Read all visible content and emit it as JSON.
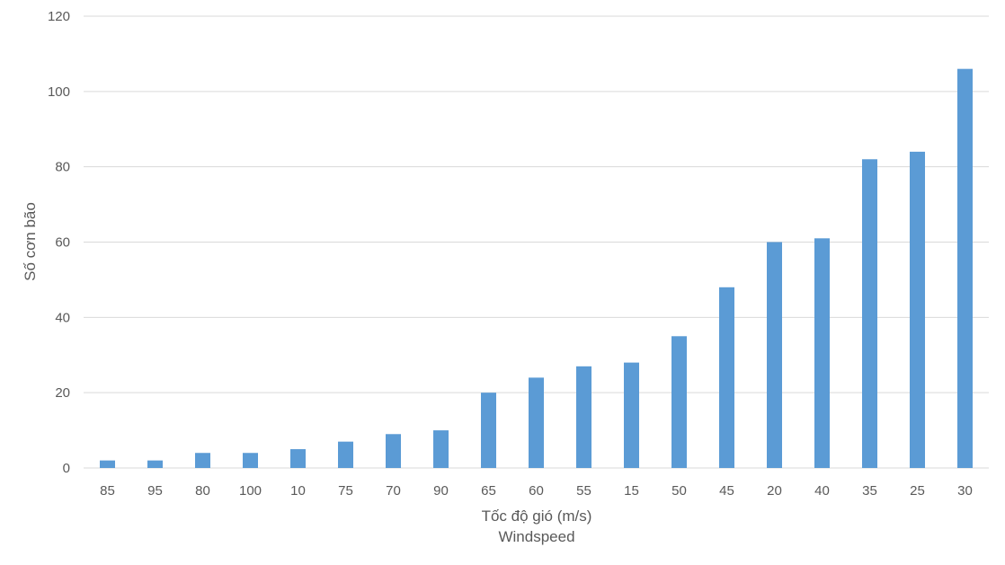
{
  "chart_data": {
    "type": "bar",
    "categories": [
      "85",
      "95",
      "80",
      "100",
      "10",
      "75",
      "70",
      "90",
      "65",
      "60",
      "55",
      "15",
      "50",
      "45",
      "20",
      "40",
      "35",
      "25",
      "30"
    ],
    "series": [
      {
        "values": [
          2,
          2,
          4,
          4,
          5,
          7,
          9,
          10,
          20,
          24,
          27,
          28,
          35,
          48,
          60,
          61,
          82,
          84,
          106
        ]
      }
    ],
    "ylabel": "Số cơn bão",
    "xlabel": "Tốc độ gió (m/s)",
    "xlabel_sub": "Windspeed",
    "ylim": [
      0,
      120
    ],
    "yticks": [
      0,
      20,
      40,
      60,
      80,
      100,
      120
    ],
    "grid": true,
    "legend": "none",
    "bar_color": "#5b9bd5"
  }
}
